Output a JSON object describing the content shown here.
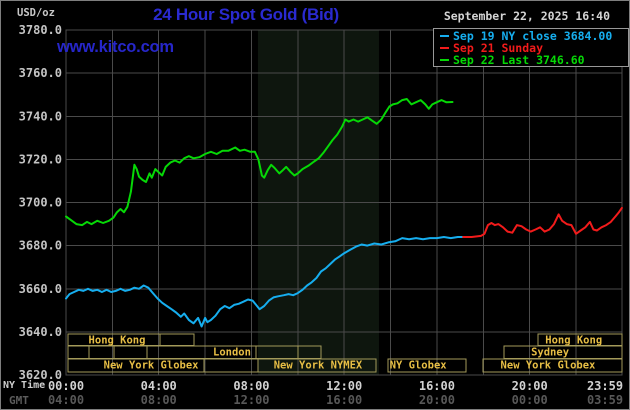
{
  "header": {
    "unit_label": "USD/oz",
    "title": "24 Hour Spot Gold (Bid)",
    "datetime": "September 22, 2025 16:40",
    "watermark": "www.kitco.com"
  },
  "legend": {
    "items": [
      {
        "label": "Sep 19 NY close 3684.00",
        "color": "#16aeef"
      },
      {
        "label": "Sep 21 Sunday",
        "color": "#f21b1b"
      },
      {
        "label": "Sep 22 Last 3746.60",
        "color": "#06d806"
      }
    ]
  },
  "axis": {
    "time_zone_row1": "NY Time",
    "time_zone_row2": "GMT",
    "ny_ticks": [
      "00:00",
      "04:00",
      "08:00",
      "12:00",
      "16:00",
      "20:00",
      "23:59"
    ],
    "gmt_ticks": [
      "04:00",
      "08:00",
      "12:00",
      "16:00",
      "20:00",
      "00:00",
      "03:59"
    ],
    "y_ticks": [
      "3780.0",
      "3760.0",
      "3740.0",
      "3720.0",
      "3700.0",
      "3680.0",
      "3660.0",
      "3640.0",
      "3620.0"
    ]
  },
  "chart_data": {
    "type": "line",
    "title": "24 Hour Spot Gold (Bid)",
    "ylabel": "USD/oz",
    "ylim": [
      3620,
      3780
    ],
    "y_step": 20,
    "x_hours_range": [
      0,
      23.983
    ],
    "x_tick_hours": [
      0,
      4,
      8,
      12,
      16,
      20,
      23.983
    ],
    "grid": true,
    "grid_color": "#4a4a4a",
    "band_color": "#0e160e",
    "session_border_color": "#a39a5a",
    "session_text_color": "#e7be45",
    "nymex_band_hours": [
      8.28,
      13.5
    ],
    "series": [
      {
        "name": "Sep 19 NY close",
        "color": "#16aeef",
        "points": [
          [
            0.0,
            3655.5
          ],
          [
            0.15,
            3657.5
          ],
          [
            0.35,
            3658.5
          ],
          [
            0.55,
            3659.5
          ],
          [
            0.75,
            3659
          ],
          [
            0.95,
            3660
          ],
          [
            1.15,
            3659
          ],
          [
            1.35,
            3659.5
          ],
          [
            1.55,
            3658.5
          ],
          [
            1.75,
            3659.5
          ],
          [
            1.95,
            3658.5
          ],
          [
            2.15,
            3659
          ],
          [
            2.35,
            3660
          ],
          [
            2.55,
            3659
          ],
          [
            2.75,
            3659.5
          ],
          [
            2.95,
            3660.5
          ],
          [
            3.15,
            3660
          ],
          [
            3.35,
            3661.5
          ],
          [
            3.55,
            3660.5
          ],
          [
            3.75,
            3658
          ],
          [
            3.95,
            3655.5
          ],
          [
            4.15,
            3653.5
          ],
          [
            4.35,
            3652
          ],
          [
            4.55,
            3650.5
          ],
          [
            4.75,
            3649
          ],
          [
            4.95,
            3647
          ],
          [
            5.1,
            3648.5
          ],
          [
            5.3,
            3645.5
          ],
          [
            5.5,
            3644
          ],
          [
            5.7,
            3646.5
          ],
          [
            5.85,
            3642.5
          ],
          [
            6.0,
            3646.5
          ],
          [
            6.1,
            3644.5
          ],
          [
            6.25,
            3645.5
          ],
          [
            6.45,
            3647.5
          ],
          [
            6.65,
            3650.5
          ],
          [
            6.85,
            3652
          ],
          [
            7.05,
            3651
          ],
          [
            7.25,
            3652.5
          ],
          [
            7.45,
            3653
          ],
          [
            7.65,
            3654
          ],
          [
            7.85,
            3655
          ],
          [
            8.05,
            3654.5
          ],
          [
            8.2,
            3652.5
          ],
          [
            8.35,
            3650.5
          ],
          [
            8.55,
            3652
          ],
          [
            8.75,
            3654.5
          ],
          [
            8.95,
            3656
          ],
          [
            9.15,
            3656.5
          ],
          [
            9.4,
            3657
          ],
          [
            9.6,
            3657.5
          ],
          [
            9.8,
            3657
          ],
          [
            10.0,
            3658
          ],
          [
            10.2,
            3659.5
          ],
          [
            10.4,
            3661.5
          ],
          [
            10.6,
            3663
          ],
          [
            10.8,
            3665
          ],
          [
            11.0,
            3668
          ],
          [
            11.2,
            3669.5
          ],
          [
            11.4,
            3671.5
          ],
          [
            11.6,
            3673.5
          ],
          [
            11.8,
            3675
          ],
          [
            12.0,
            3676.5
          ],
          [
            12.25,
            3678
          ],
          [
            12.5,
            3679.5
          ],
          [
            12.75,
            3680.5
          ],
          [
            13.0,
            3680
          ],
          [
            13.3,
            3681
          ],
          [
            13.6,
            3680.5
          ],
          [
            13.9,
            3681.5
          ],
          [
            14.2,
            3682
          ],
          [
            14.5,
            3683.5
          ],
          [
            14.8,
            3683
          ],
          [
            15.1,
            3683.5
          ],
          [
            15.4,
            3683
          ],
          [
            15.7,
            3683.5
          ],
          [
            16.0,
            3683.5
          ],
          [
            16.3,
            3684
          ],
          [
            16.6,
            3683.5
          ],
          [
            16.9,
            3684
          ],
          [
            17.13,
            3684
          ]
        ]
      },
      {
        "name": "Sep 21 Sunday",
        "color": "#f21b1b",
        "points": [
          [
            17.13,
            3684
          ],
          [
            17.5,
            3684
          ],
          [
            17.9,
            3684.5
          ],
          [
            18.05,
            3685.5
          ],
          [
            18.2,
            3689.5
          ],
          [
            18.35,
            3690.5
          ],
          [
            18.5,
            3689.5
          ],
          [
            18.65,
            3690
          ],
          [
            18.85,
            3688.5
          ],
          [
            19.05,
            3686.5
          ],
          [
            19.25,
            3686
          ],
          [
            19.45,
            3689.5
          ],
          [
            19.65,
            3689
          ],
          [
            19.85,
            3687.5
          ],
          [
            20.05,
            3686.5
          ],
          [
            20.25,
            3687.5
          ],
          [
            20.45,
            3688.5
          ],
          [
            20.65,
            3686.5
          ],
          [
            20.85,
            3687.5
          ],
          [
            21.05,
            3690
          ],
          [
            21.25,
            3694.5
          ],
          [
            21.4,
            3691.5
          ],
          [
            21.6,
            3690
          ],
          [
            21.8,
            3689.5
          ],
          [
            22.0,
            3685.5
          ],
          [
            22.2,
            3687
          ],
          [
            22.4,
            3688.5
          ],
          [
            22.6,
            3691
          ],
          [
            22.75,
            3687.5
          ],
          [
            22.9,
            3687
          ],
          [
            23.1,
            3688.5
          ],
          [
            23.3,
            3689.5
          ],
          [
            23.5,
            3691
          ],
          [
            23.7,
            3693.5
          ],
          [
            23.85,
            3695.5
          ],
          [
            23.98,
            3697.5
          ]
        ]
      },
      {
        "name": "Sep 22 Last",
        "color": "#06d806",
        "points": [
          [
            0.0,
            3693.5
          ],
          [
            0.2,
            3692
          ],
          [
            0.45,
            3690
          ],
          [
            0.7,
            3689.5
          ],
          [
            0.9,
            3691
          ],
          [
            1.1,
            3690
          ],
          [
            1.35,
            3691.5
          ],
          [
            1.6,
            3690.5
          ],
          [
            1.85,
            3691.5
          ],
          [
            2.05,
            3693
          ],
          [
            2.2,
            3695.5
          ],
          [
            2.35,
            3697
          ],
          [
            2.5,
            3695.5
          ],
          [
            2.65,
            3698
          ],
          [
            2.8,
            3705
          ],
          [
            2.95,
            3717.5
          ],
          [
            3.05,
            3715.5
          ],
          [
            3.15,
            3712
          ],
          [
            3.3,
            3710.5
          ],
          [
            3.45,
            3709.5
          ],
          [
            3.6,
            3713.5
          ],
          [
            3.7,
            3711.5
          ],
          [
            3.85,
            3715.5
          ],
          [
            4.0,
            3714
          ],
          [
            4.15,
            3712.5
          ],
          [
            4.3,
            3716.5
          ],
          [
            4.5,
            3718.5
          ],
          [
            4.7,
            3719.5
          ],
          [
            4.9,
            3718.5
          ],
          [
            5.1,
            3720.5
          ],
          [
            5.3,
            3721.5
          ],
          [
            5.5,
            3720.5
          ],
          [
            5.75,
            3721
          ],
          [
            6.0,
            3722.5
          ],
          [
            6.25,
            3723.5
          ],
          [
            6.5,
            3722.5
          ],
          [
            6.75,
            3724
          ],
          [
            7.0,
            3724
          ],
          [
            7.3,
            3725.5
          ],
          [
            7.5,
            3724
          ],
          [
            7.7,
            3724.5
          ],
          [
            7.95,
            3723.5
          ],
          [
            8.15,
            3723.5
          ],
          [
            8.3,
            3720
          ],
          [
            8.45,
            3712.5
          ],
          [
            8.55,
            3711.5
          ],
          [
            8.7,
            3715
          ],
          [
            8.85,
            3717.5
          ],
          [
            9.0,
            3716
          ],
          [
            9.2,
            3713.5
          ],
          [
            9.35,
            3715
          ],
          [
            9.5,
            3716.5
          ],
          [
            9.7,
            3714
          ],
          [
            9.85,
            3712.5
          ],
          [
            10.0,
            3713.5
          ],
          [
            10.2,
            3715.5
          ],
          [
            10.45,
            3717
          ],
          [
            10.7,
            3719
          ],
          [
            10.9,
            3720.5
          ],
          [
            11.1,
            3723
          ],
          [
            11.3,
            3726
          ],
          [
            11.5,
            3729
          ],
          [
            11.7,
            3731.5
          ],
          [
            11.9,
            3735
          ],
          [
            12.05,
            3738.5
          ],
          [
            12.2,
            3737.5
          ],
          [
            12.4,
            3738.5
          ],
          [
            12.6,
            3737.5
          ],
          [
            12.8,
            3738.5
          ],
          [
            13.0,
            3739.5
          ],
          [
            13.2,
            3738
          ],
          [
            13.4,
            3736.5
          ],
          [
            13.6,
            3738.5
          ],
          [
            13.8,
            3742
          ],
          [
            13.95,
            3744.5
          ],
          [
            14.1,
            3745.5
          ],
          [
            14.3,
            3746
          ],
          [
            14.5,
            3747.5
          ],
          [
            14.7,
            3748
          ],
          [
            14.9,
            3745.5
          ],
          [
            15.1,
            3746.5
          ],
          [
            15.3,
            3747.5
          ],
          [
            15.5,
            3745.5
          ],
          [
            15.65,
            3743.5
          ],
          [
            15.8,
            3745.5
          ],
          [
            16.0,
            3746.5
          ],
          [
            16.2,
            3747.5
          ],
          [
            16.4,
            3746.5
          ],
          [
            16.67,
            3746.6
          ]
        ]
      }
    ],
    "session_rows": [
      {
        "boxes": [
          [
            0.09,
            4.06
          ],
          [
            4.06,
            5.52
          ],
          [
            20.36,
            23.98
          ]
        ],
        "labels": [
          {
            "text": "Hong Kong",
            "at": 2.2
          },
          {
            "text": "Hong Kong",
            "at": 21.9
          }
        ]
      },
      {
        "boxes": [
          [
            0.09,
            0.99
          ],
          [
            0.99,
            2.07
          ],
          [
            2.07,
            3.49
          ],
          [
            3.49,
            8.2
          ],
          [
            8.2,
            10.0
          ],
          [
            10.0,
            11.0
          ],
          [
            18.9,
            23.98
          ]
        ],
        "labels": [
          {
            "text": "London",
            "at": 7.16
          },
          {
            "text": "Sydney",
            "at": 20.88
          }
        ]
      },
      {
        "boxes": [
          [
            0.09,
            5.95
          ],
          [
            5.95,
            8.28
          ],
          [
            8.28,
            13.37
          ],
          [
            13.89,
            17.25
          ],
          [
            17.99,
            23.98
          ]
        ],
        "labels": [
          {
            "text": "New York Globex",
            "at": 3.67
          },
          {
            "text": "New York NYMEX",
            "at": 10.87
          },
          {
            "text": "NY Globex",
            "at": 15.19
          },
          {
            "text": "New York Globex",
            "at": 20.79
          }
        ]
      }
    ]
  }
}
